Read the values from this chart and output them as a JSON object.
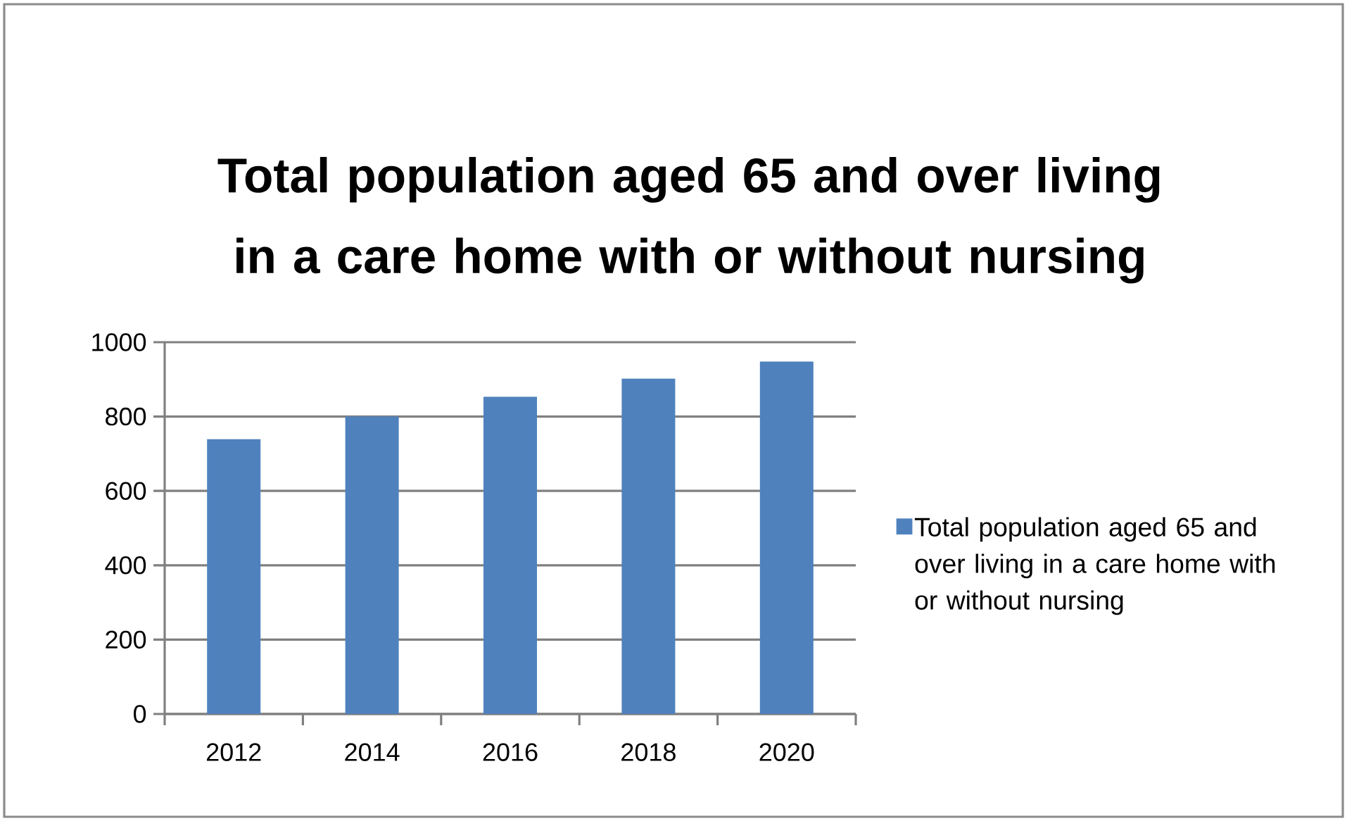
{
  "chart_data": {
    "type": "bar",
    "title": "Total population aged 65 and over living in a care home with or without nursing",
    "categories": [
      "2012",
      "2014",
      "2016",
      "2018",
      "2020"
    ],
    "series": [
      {
        "name": "Total population aged 65 and over living in a care home with or without nursing",
        "color": "#4f81bd",
        "values": [
          739,
          800,
          853,
          902,
          948
        ]
      }
    ],
    "ylim": [
      0,
      1000
    ],
    "yticks": [
      0,
      200,
      400,
      600,
      800,
      1000
    ],
    "grid": "y",
    "legend": "right"
  }
}
